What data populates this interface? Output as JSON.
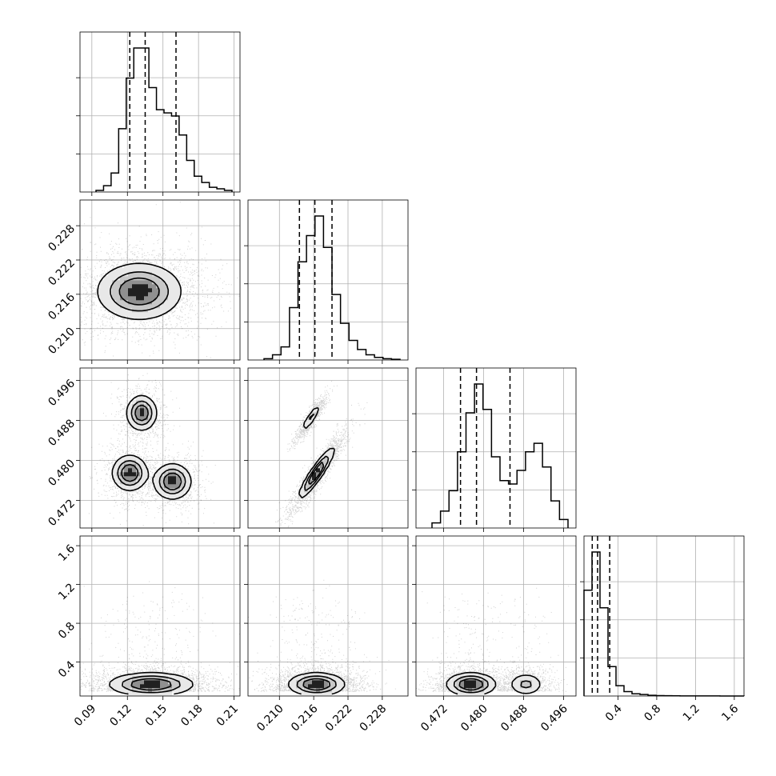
{
  "chart_data": {
    "type": "corner",
    "grid": true,
    "parameters": [
      {
        "id": "p0",
        "range": [
          0.08,
          0.215
        ],
        "ticks": [
          0.09,
          0.12,
          0.15,
          0.18,
          0.21
        ],
        "tick_labels": [
          "0.09",
          "0.12",
          "0.15",
          "0.18",
          "0.21"
        ]
      },
      {
        "id": "p1",
        "range": [
          0.2045,
          0.2325
        ],
        "ticks": [
          0.21,
          0.216,
          0.222,
          0.228
        ],
        "tick_labels": [
          "0.210",
          "0.216",
          "0.222",
          "0.228"
        ]
      },
      {
        "id": "p2",
        "range": [
          0.4665,
          0.4985
        ],
        "ticks": [
          0.472,
          0.48,
          0.488,
          0.496
        ],
        "tick_labels": [
          "0.472",
          "0.480",
          "0.488",
          "0.496"
        ]
      },
      {
        "id": "p3",
        "range": [
          0.05,
          1.7
        ],
        "ticks": [
          0.4,
          0.8,
          1.2,
          1.6
        ],
        "tick_labels": [
          "0.4",
          "0.8",
          "1.2",
          "1.6"
        ]
      }
    ],
    "quantiles": [
      [
        0.122,
        0.135,
        0.161
      ],
      [
        0.2135,
        0.2162,
        0.2192
      ],
      [
        0.4754,
        0.4786,
        0.4853
      ],
      [
        0.135,
        0.19,
        0.315
      ]
    ],
    "histograms": [
      {
        "counts": [
          1,
          4,
          12,
          40,
          72,
          91,
          91,
          66,
          52,
          50,
          48,
          36,
          20,
          10,
          6,
          3,
          2,
          1
        ]
      },
      {
        "counts": [
          1,
          4,
          10,
          40,
          75,
          95,
          110,
          86,
          50,
          28,
          15,
          8,
          4,
          2,
          1,
          0.5
        ]
      },
      {
        "counts": [
          3,
          10,
          22,
          45,
          68,
          85,
          70,
          42,
          28,
          26,
          34,
          45,
          50,
          36,
          16,
          5
        ]
      },
      {
        "counts": [
          72,
          98,
          60,
          20,
          7,
          3,
          1.5,
          1,
          0.5,
          0.3,
          0.2,
          0.15,
          0.1,
          0.08,
          0.06,
          0.05,
          0.04,
          0.03,
          0.02,
          0.02
        ]
      }
    ],
    "pairs": [
      {
        "x": 0,
        "y": 1,
        "modes": [
          {
            "mx": 0.13,
            "my": 0.2165,
            "sx": 0.018,
            "sy": 0.0025,
            "w": 1.0
          }
        ]
      },
      {
        "x": 0,
        "y": 2,
        "modes": [
          {
            "mx": 0.132,
            "my": 0.4895,
            "sx": 0.0065,
            "sy": 0.0018,
            "w": 0.32
          },
          {
            "mx": 0.122,
            "my": 0.4775,
            "sx": 0.0075,
            "sy": 0.0018,
            "w": 0.34
          },
          {
            "mx": 0.158,
            "my": 0.4758,
            "sx": 0.008,
            "sy": 0.0018,
            "w": 0.34
          }
        ]
      },
      {
        "x": 1,
        "y": 2,
        "modes": [
          {
            "mx": 0.2155,
            "my": 0.4885,
            "sx": 0.0009,
            "sy": 0.0015,
            "rho": 0.9,
            "w": 0.32
          },
          {
            "mx": 0.2165,
            "my": 0.4775,
            "sx": 0.0016,
            "sy": 0.0026,
            "rho": 0.92,
            "w": 0.68
          }
        ]
      },
      {
        "x": 0,
        "y": 3,
        "modes": [
          {
            "mx": 0.14,
            "my": 0.19,
            "sx": 0.018,
            "sy": 0.07,
            "w": 1.0
          }
        ]
      },
      {
        "x": 1,
        "y": 3,
        "modes": [
          {
            "mx": 0.2165,
            "my": 0.19,
            "sx": 0.0025,
            "sy": 0.07,
            "w": 1.0
          }
        ]
      },
      {
        "x": 2,
        "y": 3,
        "modes": [
          {
            "mx": 0.4775,
            "my": 0.19,
            "sx": 0.0025,
            "sy": 0.07,
            "w": 0.68
          },
          {
            "mx": 0.4885,
            "my": 0.19,
            "sx": 0.0018,
            "sy": 0.07,
            "w": 0.32
          }
        ]
      }
    ]
  }
}
